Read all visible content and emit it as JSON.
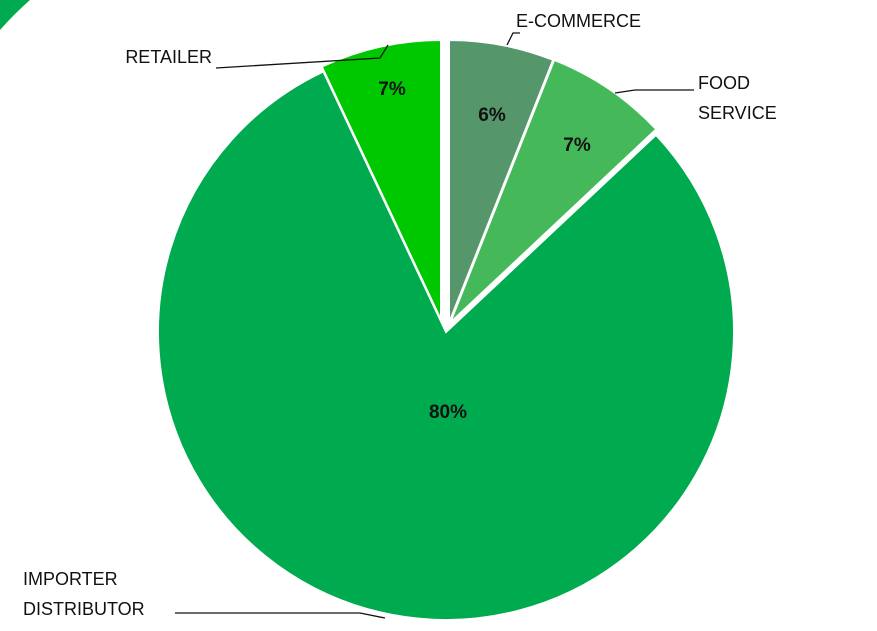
{
  "chart_data": {
    "type": "pie",
    "categories": [
      "E-COMMERCE",
      "FOOD SERVICE",
      "IMPORTER DISTRIBUTOR",
      "RETAILER"
    ],
    "values": [
      6,
      7,
      80,
      7
    ],
    "value_labels": [
      "6%",
      "7%",
      "80%",
      "7%"
    ],
    "colors": [
      "#55966a",
      "#45b95a",
      "#00aa4f",
      "#00c800"
    ]
  }
}
